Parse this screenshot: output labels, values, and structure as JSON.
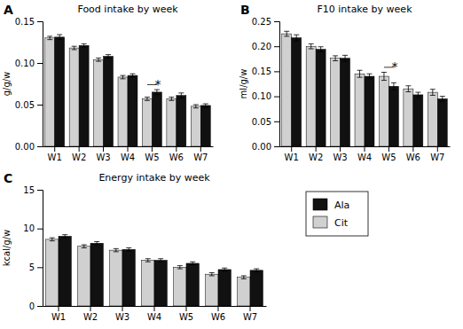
{
  "chart_data": [
    {
      "type": "bar",
      "panel_label": "A",
      "title": "Food intake by week",
      "y_label": "g/g/w",
      "categories": [
        "W1",
        "W2",
        "W3",
        "W4",
        "W5",
        "W6",
        "W7"
      ],
      "series": [
        {
          "name": "Cit",
          "color": "#d0d0d0",
          "values": [
            0.13,
            0.118,
            0.104,
            0.083,
            0.057,
            0.057,
            0.048
          ],
          "errors": [
            0.002,
            0.002,
            0.002,
            0.002,
            0.002,
            0.002,
            0.002
          ]
        },
        {
          "name": "Ala",
          "color": "#111111",
          "values": [
            0.131,
            0.121,
            0.108,
            0.085,
            0.065,
            0.061,
            0.049
          ],
          "errors": [
            0.003,
            0.002,
            0.002,
            0.002,
            0.003,
            0.003,
            0.002
          ]
        }
      ],
      "ylim": [
        0.0,
        0.15
      ],
      "yticks": [
        {
          "value": 0.0,
          "label": "0.00"
        },
        {
          "value": 0.05,
          "label": "0.05"
        },
        {
          "value": 0.1,
          "label": "0.10"
        },
        {
          "value": 0.15,
          "label": "0.15"
        }
      ],
      "grid": false,
      "annotations": [
        {
          "text": "*",
          "category": "W5"
        }
      ]
    },
    {
      "type": "bar",
      "panel_label": "B",
      "title": "F10 intake by week",
      "y_label": "ml/g/w",
      "categories": [
        "W1",
        "W2",
        "W3",
        "W4",
        "W5",
        "W6",
        "W7"
      ],
      "series": [
        {
          "name": "Cit",
          "color": "#d0d0d0",
          "values": [
            0.225,
            0.2,
            0.176,
            0.145,
            0.14,
            0.115,
            0.108
          ],
          "errors": [
            0.005,
            0.005,
            0.005,
            0.007,
            0.008,
            0.006,
            0.006
          ]
        },
        {
          "name": "Ala",
          "color": "#111111",
          "values": [
            0.217,
            0.194,
            0.176,
            0.14,
            0.12,
            0.103,
            0.095
          ],
          "errors": [
            0.006,
            0.005,
            0.006,
            0.005,
            0.007,
            0.005,
            0.005
          ]
        }
      ],
      "ylim": [
        0.0,
        0.25
      ],
      "yticks": [
        {
          "value": 0.0,
          "label": "0.00"
        },
        {
          "value": 0.05,
          "label": "0.05"
        },
        {
          "value": 0.1,
          "label": "0.10"
        },
        {
          "value": 0.15,
          "label": "0.15"
        },
        {
          "value": 0.2,
          "label": "0.20"
        },
        {
          "value": 0.25,
          "label": "0.25"
        }
      ],
      "grid": false,
      "annotations": [
        {
          "text": "*",
          "category": "W5"
        }
      ]
    },
    {
      "type": "bar",
      "panel_label": "C",
      "title": "Energy intake by week",
      "y_label": "kcal/g/w",
      "categories": [
        "W1",
        "W2",
        "W3",
        "W4",
        "W5",
        "W6",
        "W7"
      ],
      "series": [
        {
          "name": "Cit",
          "color": "#d0d0d0",
          "values": [
            8.6,
            7.7,
            7.2,
            5.9,
            5.0,
            4.1,
            3.7
          ],
          "errors": [
            0.2,
            0.2,
            0.2,
            0.2,
            0.2,
            0.2,
            0.2
          ]
        },
        {
          "name": "Ala",
          "color": "#111111",
          "values": [
            9.0,
            8.1,
            7.3,
            5.9,
            5.5,
            4.7,
            4.6
          ],
          "errors": [
            0.2,
            0.2,
            0.2,
            0.2,
            0.2,
            0.2,
            0.2
          ]
        }
      ],
      "ylim": [
        0,
        15
      ],
      "yticks": [
        0,
        5,
        10,
        15
      ],
      "grid": false,
      "legend": "right"
    }
  ]
}
